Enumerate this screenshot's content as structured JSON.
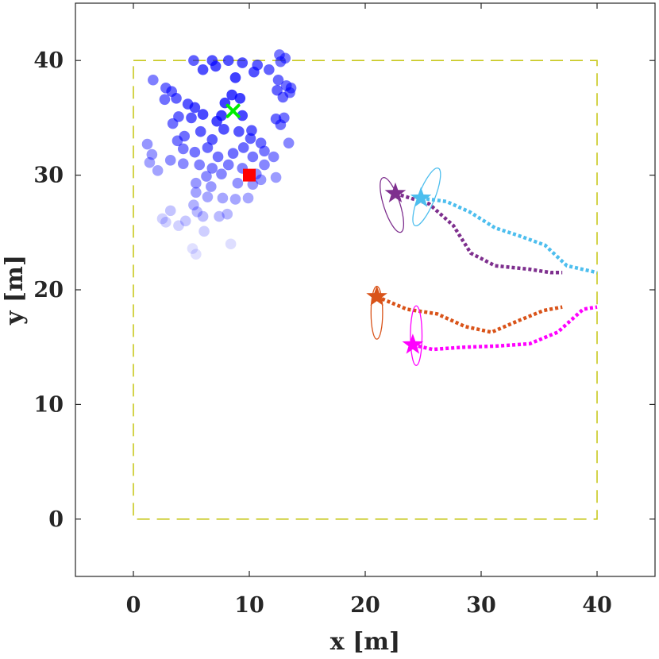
{
  "chart_data": {
    "type": "scatter",
    "title": "",
    "xlabel": "x [m]",
    "ylabel": "y [m]",
    "xlim": [
      -5,
      45
    ],
    "ylim": [
      -5,
      45
    ],
    "xticks": [
      0,
      10,
      20,
      30,
      40
    ],
    "yticks": [
      0,
      10,
      20,
      30,
      40
    ],
    "xtick_labels": [
      "0",
      "10",
      "20",
      "30",
      "40"
    ],
    "ytick_labels": [
      "0",
      "10",
      "20",
      "30",
      "40"
    ],
    "grid": false,
    "legend": "none",
    "boundary": {
      "x": [
        0,
        40
      ],
      "y": [
        0,
        40
      ],
      "style": "dashed",
      "color": "#C8C81E"
    },
    "particle_color": "#0000FF",
    "particles": [
      [
        5.2,
        40.0
      ],
      [
        6.8,
        40.0
      ],
      [
        8.2,
        40.0
      ],
      [
        9.4,
        39.8
      ],
      [
        10.7,
        39.6
      ],
      [
        11.7,
        39.2
      ],
      [
        6.0,
        39.2
      ],
      [
        7.1,
        39.5
      ],
      [
        10.4,
        39.0
      ],
      [
        12.6,
        40.5
      ],
      [
        13.1,
        40.2
      ],
      [
        12.7,
        39.9
      ],
      [
        12.5,
        38.3
      ],
      [
        13.2,
        37.8
      ],
      [
        13.5,
        37.2
      ],
      [
        12.4,
        37.4
      ],
      [
        12.9,
        36.8
      ],
      [
        13.6,
        37.6
      ],
      [
        8.8,
        38.5
      ],
      [
        8.5,
        37.0
      ],
      [
        9.2,
        36.7
      ],
      [
        7.9,
        36.3
      ],
      [
        7.6,
        35.2
      ],
      [
        7.2,
        34.7
      ],
      [
        7.8,
        34.0
      ],
      [
        9.4,
        35.2
      ],
      [
        12.3,
        34.9
      ],
      [
        12.7,
        34.4
      ],
      [
        13.0,
        35.0
      ],
      [
        1.7,
        38.3
      ],
      [
        2.8,
        37.6
      ],
      [
        3.3,
        37.3
      ],
      [
        2.7,
        36.6
      ],
      [
        3.7,
        36.7
      ],
      [
        4.7,
        36.2
      ],
      [
        5.3,
        35.9
      ],
      [
        3.9,
        35.1
      ],
      [
        5.0,
        35.0
      ],
      [
        6.0,
        35.3
      ],
      [
        3.4,
        34.5
      ],
      [
        5.8,
        33.8
      ],
      [
        4.4,
        33.4
      ],
      [
        3.8,
        33.0
      ],
      [
        6.8,
        33.1
      ],
      [
        9.1,
        33.8
      ],
      [
        10.2,
        33.9
      ],
      [
        10.1,
        33.2
      ],
      [
        11.0,
        32.8
      ],
      [
        9.5,
        32.4
      ],
      [
        8.6,
        31.9
      ],
      [
        10.3,
        31.6
      ],
      [
        11.3,
        32.1
      ],
      [
        4.3,
        32.3
      ],
      [
        5.3,
        32.0
      ],
      [
        6.4,
        32.4
      ],
      [
        7.3,
        31.6
      ],
      [
        8.2,
        30.9
      ],
      [
        9.4,
        30.6
      ],
      [
        11.3,
        30.9
      ],
      [
        13.4,
        32.8
      ],
      [
        12.1,
        31.6
      ],
      [
        1.2,
        32.7
      ],
      [
        1.6,
        31.8
      ],
      [
        1.4,
        31.1
      ],
      [
        2.1,
        30.4
      ],
      [
        3.2,
        31.3
      ],
      [
        4.3,
        31.0
      ],
      [
        5.7,
        30.9
      ],
      [
        6.8,
        30.6
      ],
      [
        7.6,
        30.1
      ],
      [
        10.6,
        30.1
      ],
      [
        11.0,
        29.6
      ],
      [
        12.3,
        29.8
      ],
      [
        6.3,
        29.9
      ],
      [
        5.4,
        29.3
      ],
      [
        6.7,
        29.0
      ],
      [
        9.0,
        29.3
      ],
      [
        10.3,
        29.2
      ],
      [
        5.4,
        28.5
      ],
      [
        6.4,
        28.1
      ],
      [
        7.7,
        28.0
      ],
      [
        8.8,
        27.9
      ],
      [
        9.9,
        28.0
      ],
      [
        5.2,
        27.4
      ],
      [
        6.0,
        26.4
      ],
      [
        5.5,
        26.8
      ],
      [
        3.2,
        26.9
      ],
      [
        2.5,
        26.2
      ],
      [
        2.8,
        25.9
      ],
      [
        4.5,
        26.0
      ],
      [
        7.4,
        26.4
      ],
      [
        8.1,
        26.6
      ],
      [
        3.9,
        25.6
      ],
      [
        6.1,
        25.1
      ],
      [
        5.1,
        23.6
      ],
      [
        5.4,
        23.1
      ],
      [
        8.4,
        24.0
      ]
    ],
    "estimated_position": {
      "x": 8.6,
      "y": 35.6,
      "color": "#00EE00",
      "marker": "x"
    },
    "true_source": {
      "x": 10.0,
      "y": 30.0,
      "color": "#FF0000",
      "marker": "square"
    },
    "agents": [
      {
        "color": "#7E2F8E",
        "star": [
          22.6,
          28.4
        ],
        "ellipse": {
          "cx": 22.3,
          "cy": 27.4,
          "rx": 0.7,
          "ry": 2.5,
          "angle": -18
        },
        "path": [
          [
            22.6,
            28.4
          ],
          [
            25.5,
            27.5
          ],
          [
            27.6,
            25.6
          ],
          [
            29.1,
            23.2
          ],
          [
            31.2,
            22.1
          ],
          [
            34.1,
            21.8
          ],
          [
            36.0,
            21.5
          ],
          [
            37.0,
            21.5
          ]
        ]
      },
      {
        "color": "#4DBEEE",
        "star": [
          24.8,
          28.0
        ],
        "ellipse": {
          "cx": 25.3,
          "cy": 28.1,
          "rx": 0.7,
          "ry": 2.7,
          "angle": 22
        },
        "path": [
          [
            24.8,
            28.0
          ],
          [
            27.0,
            27.7
          ],
          [
            29.0,
            26.8
          ],
          [
            31.2,
            25.4
          ],
          [
            33.3,
            24.7
          ],
          [
            35.5,
            23.9
          ],
          [
            37.4,
            22.1
          ],
          [
            40.0,
            21.5
          ]
        ]
      },
      {
        "color": "#D95319",
        "star": [
          21.0,
          19.4
        ],
        "ellipse": {
          "cx": 21.0,
          "cy": 18.0,
          "rx": 0.5,
          "ry": 2.3,
          "angle": 0
        },
        "path": [
          [
            21.0,
            19.4
          ],
          [
            23.6,
            18.3
          ],
          [
            26.2,
            17.9
          ],
          [
            28.6,
            16.8
          ],
          [
            30.9,
            16.3
          ],
          [
            33.2,
            17.3
          ],
          [
            35.4,
            18.2
          ],
          [
            37.0,
            18.5
          ]
        ]
      },
      {
        "color": "#FF00FF",
        "star": [
          24.1,
          15.2
        ],
        "ellipse": {
          "cx": 24.4,
          "cy": 16.0,
          "rx": 0.5,
          "ry": 2.6,
          "angle": 0
        },
        "path": [
          [
            24.1,
            15.2
          ],
          [
            25.8,
            14.8
          ],
          [
            28.6,
            15.0
          ],
          [
            31.4,
            15.1
          ],
          [
            34.2,
            15.3
          ],
          [
            36.6,
            16.3
          ],
          [
            38.8,
            18.3
          ],
          [
            40.0,
            18.5
          ]
        ]
      }
    ]
  }
}
